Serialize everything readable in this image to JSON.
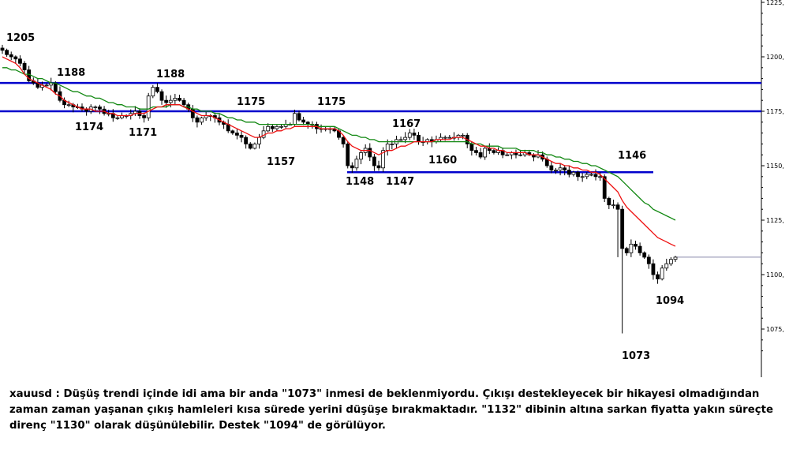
{
  "caption": "xauusd : Düşüş trendi içinde idi ama bir anda \"1073\" inmesi de beklenmiyordu. Çıkışı destekleyecek bir hikayesi olmadığından zaman zaman yaşanan çıkış hamleleri kısa sürede yerini düşüşe bırakmaktadır. \"1132\" dibinin altına sarkan fiyatta  yakın süreçte direnç \"1130\" olarak düşünülebilir. Destek \"1094\" de görülüyor.",
  "chart_data": {
    "type": "candlestick",
    "symbol": "xauusd",
    "ylim": [
      1060,
      1225
    ],
    "y_ticks": [
      {
        "value": 1075,
        "label": "1075,"
      },
      {
        "value": 1100,
        "label": "1100,"
      },
      {
        "value": 1125,
        "label": "1125,"
      },
      {
        "value": 1150,
        "label": "1150,"
      },
      {
        "value": 1175,
        "label": "1175,"
      },
      {
        "value": 1200,
        "label": "1200,"
      },
      {
        "value": 1225,
        "label": "1225,"
      }
    ],
    "horizontal_levels": [
      {
        "value": 1188,
        "color": "#0000cc",
        "span": "full"
      },
      {
        "value": 1175,
        "color": "#0000cc",
        "span": "full"
      },
      {
        "value": 1147,
        "color": "#0000cc",
        "span": "partial"
      }
    ],
    "current_price": 1108,
    "annotations": [
      "1205",
      "1188",
      "1188",
      "1174",
      "1171",
      "1175",
      "1175",
      "1157",
      "1167",
      "1160",
      "1148",
      "1147",
      "1146",
      "1094",
      "1073"
    ],
    "candles_close": [
      1203,
      1201,
      1200,
      1199,
      1197,
      1194,
      1189,
      1188,
      1186,
      1187,
      1187,
      1188,
      1184,
      1180,
      1178,
      1178,
      1177,
      1177,
      1176,
      1175,
      1177,
      1177,
      1176,
      1174,
      1174,
      1172,
      1172,
      1173,
      1173,
      1174,
      1175,
      1173,
      1172,
      1182,
      1186,
      1184,
      1180,
      1179,
      1180,
      1181,
      1180,
      1178,
      1176,
      1172,
      1170,
      1172,
      1173,
      1173,
      1172,
      1170,
      1169,
      1166,
      1165,
      1164,
      1163,
      1160,
      1158,
      1160,
      1163,
      1166,
      1168,
      1167,
      1168,
      1168,
      1169,
      1169,
      1174,
      1171,
      1170,
      1169,
      1169,
      1167,
      1167,
      1167,
      1167,
      1166,
      1163,
      1160,
      1150,
      1149,
      1153,
      1156,
      1158,
      1154,
      1150,
      1149,
      1157,
      1160,
      1160,
      1162,
      1162,
      1163,
      1165,
      1164,
      1161,
      1161,
      1162,
      1161,
      1162,
      1163,
      1163,
      1163,
      1163,
      1164,
      1164,
      1160,
      1157,
      1156,
      1154,
      1158,
      1157,
      1156,
      1157,
      1155,
      1155,
      1156,
      1155,
      1155,
      1156,
      1155,
      1154,
      1155,
      1153,
      1150,
      1148,
      1148,
      1149,
      1148,
      1146,
      1147,
      1145,
      1145,
      1146,
      1146,
      1145,
      1145,
      1135,
      1132,
      1132,
      1130,
      1112,
      1110,
      1114,
      1113,
      1110,
      1108,
      1105,
      1100,
      1098,
      1103,
      1105,
      1107,
      1108
    ],
    "ema_fast_red": [
      1200,
      1199,
      1198,
      1197,
      1195,
      1192,
      1190,
      1189,
      1188,
      1187,
      1186,
      1185,
      1183,
      1182,
      1180,
      1179,
      1178,
      1177,
      1176,
      1176,
      1176,
      1175,
      1175,
      1175,
      1174,
      1174,
      1173,
      1173,
      1173,
      1173,
      1174,
      1174,
      1174,
      1175,
      1176,
      1177,
      1177,
      1178,
      1178,
      1178,
      1178,
      1177,
      1176,
      1175,
      1174,
      1173,
      1173,
      1173,
      1172,
      1171,
      1170,
      1169,
      1168,
      1167,
      1166,
      1165,
      1164,
      1163,
      1163,
      1164,
      1165,
      1165,
      1166,
      1166,
      1167,
      1167,
      1168,
      1168,
      1168,
      1168,
      1168,
      1168,
      1167,
      1167,
      1167,
      1167,
      1166,
      1164,
      1161,
      1159,
      1158,
      1157,
      1157,
      1157,
      1156,
      1155,
      1156,
      1157,
      1157,
      1158,
      1159,
      1159,
      1160,
      1161,
      1161,
      1161,
      1161,
      1161,
      1162,
      1162,
      1162,
      1162,
      1163,
      1163,
      1163,
      1162,
      1161,
      1160,
      1159,
      1159,
      1158,
      1158,
      1157,
      1157,
      1156,
      1156,
      1156,
      1156,
      1156,
      1155,
      1155,
      1155,
      1154,
      1153,
      1152,
      1151,
      1151,
      1150,
      1150,
      1149,
      1149,
      1148,
      1148,
      1147,
      1147,
      1146,
      1144,
      1142,
      1140,
      1138,
      1134,
      1131,
      1129,
      1127,
      1125,
      1123,
      1121,
      1119,
      1117,
      1116,
      1115,
      1114,
      1113
    ],
    "ema_slow_green": [
      1195,
      1195,
      1194,
      1194,
      1193,
      1192,
      1192,
      1191,
      1190,
      1190,
      1189,
      1188,
      1188,
      1187,
      1186,
      1185,
      1184,
      1184,
      1183,
      1182,
      1182,
      1181,
      1181,
      1180,
      1179,
      1179,
      1178,
      1178,
      1177,
      1177,
      1177,
      1176,
      1176,
      1176,
      1177,
      1177,
      1177,
      1177,
      1178,
      1178,
      1178,
      1177,
      1177,
      1176,
      1176,
      1175,
      1175,
      1175,
      1174,
      1174,
      1173,
      1172,
      1172,
      1171,
      1171,
      1170,
      1170,
      1170,
      1169,
      1169,
      1169,
      1169,
      1169,
      1169,
      1169,
      1169,
      1169,
      1169,
      1169,
      1169,
      1169,
      1168,
      1168,
      1168,
      1168,
      1168,
      1167,
      1166,
      1165,
      1164,
      1164,
      1163,
      1163,
      1162,
      1162,
      1161,
      1161,
      1161,
      1161,
      1161,
      1161,
      1161,
      1161,
      1161,
      1161,
      1161,
      1161,
      1161,
      1161,
      1161,
      1161,
      1161,
      1161,
      1161,
      1161,
      1161,
      1160,
      1160,
      1160,
      1159,
      1159,
      1159,
      1159,
      1158,
      1158,
      1158,
      1158,
      1157,
      1157,
      1157,
      1157,
      1156,
      1156,
      1155,
      1155,
      1154,
      1154,
      1153,
      1153,
      1152,
      1152,
      1151,
      1151,
      1150,
      1150,
      1149,
      1148,
      1147,
      1146,
      1145,
      1143,
      1141,
      1139,
      1137,
      1135,
      1133,
      1132,
      1130,
      1129,
      1128,
      1127,
      1126,
      1125
    ]
  }
}
